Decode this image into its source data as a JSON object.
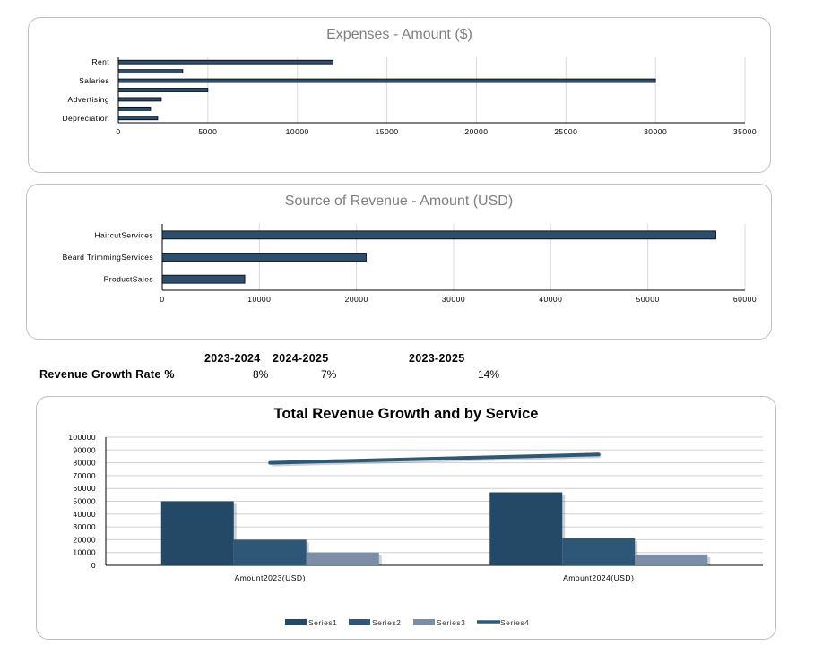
{
  "colors": {
    "bar": "#2c4f6e",
    "dark": "#244966",
    "mid": "#2e5677",
    "light": "#7a8ea5",
    "line": "#2a5a78",
    "grid": "#d9d9d9"
  },
  "chart_data": [
    {
      "type": "bar",
      "orientation": "horizontal",
      "title": "Expenses - Amount ($)",
      "categories": [
        "Rent",
        "",
        "Salaries",
        "",
        "Advertising",
        "",
        "Depreciation"
      ],
      "values": [
        12000,
        3600,
        30000,
        5000,
        2400,
        1800,
        2200
      ],
      "xlim": [
        0,
        35000
      ],
      "xticks": [
        0,
        5000,
        10000,
        15000,
        20000,
        25000,
        30000,
        35000
      ],
      "grid": true
    },
    {
      "type": "bar",
      "orientation": "horizontal",
      "title": "Source of Revenue - Amount (USD)",
      "categories": [
        "HaircutServices",
        "Beard TrimmingServices",
        "ProductSales"
      ],
      "values": [
        57000,
        21000,
        8500
      ],
      "xlim": [
        0,
        60000
      ],
      "xticks": [
        0,
        10000,
        20000,
        30000,
        40000,
        50000,
        60000
      ],
      "grid": true
    },
    {
      "type": "bar",
      "title": "Total Revenue Growth and by Service",
      "categories": [
        "Amount2023(USD)",
        "Amount2024(USD)"
      ],
      "series": [
        {
          "name": "Series1",
          "values": [
            50000,
            57000
          ]
        },
        {
          "name": "Series2",
          "values": [
            20000,
            21000
          ]
        },
        {
          "name": "Series3",
          "values": [
            10000,
            8500
          ]
        },
        {
          "name": "Series4",
          "type": "line",
          "values": [
            80000,
            86500
          ]
        }
      ],
      "ylim": [
        0,
        100000
      ],
      "yticks": [
        0,
        10000,
        20000,
        30000,
        40000,
        50000,
        60000,
        70000,
        80000,
        90000,
        100000
      ],
      "legend": "bottom",
      "grid": true
    }
  ],
  "growth_table": {
    "headers": [
      "2023-2024",
      "2024-2025",
      "2023-2025"
    ],
    "row_label": "Revenue Growth Rate %",
    "values": [
      "8%",
      "7%",
      "14%"
    ]
  }
}
